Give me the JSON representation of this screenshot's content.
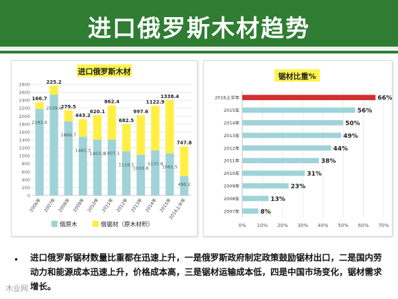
{
  "title": "进口俄罗斯木材趋势",
  "footer": {
    "bullet": "•",
    "text": "进口俄罗斯锯材数量比重都在迅速上升，一是俄罗斯政府制定政策鼓励锯材出口，二是国内劳动力和能源成本迅速上升，价格成本高，三是锯材运输成本低，四是中国市场变化，锯材需求增长。"
  },
  "watermark": "木业网",
  "chart_data": [
    {
      "type": "bar",
      "stacked": true,
      "title": "进口俄罗斯木材",
      "categories": [
        "2006年",
        "2007年",
        "2008年",
        "2009年",
        "2010年",
        "2011年",
        "2012年",
        "2013年",
        "2014年",
        "2015年",
        "2016上半年"
      ],
      "series": [
        {
          "name": "俄原木",
          "color": "#9fd3d8",
          "values": [
            2182.6,
            2539.6,
            1866.7,
            1481.3,
            1403.9,
            1407.1,
            1116.1,
            1026.8,
            1137.9,
            1061.5,
            490.2
          ]
        },
        {
          "name": "俄锯材（原木材积）",
          "color": "#ffef45",
          "values": [
            166.7,
            225.2,
            279.5,
            443.2,
            620.1,
            862.4,
            682.5,
            997.6,
            1122.9,
            1338.4,
            747.8
          ]
        }
      ],
      "yticks": [
        0,
        200,
        400,
        600,
        800,
        1000,
        1200,
        1400,
        1600,
        1800,
        2000,
        2200,
        2400,
        2600,
        2800
      ],
      "ylim": [
        0,
        2800
      ],
      "legend": "bottom"
    },
    {
      "type": "bar",
      "orientation": "horizontal",
      "title": "锯材比重%",
      "categories": [
        "2016上半年",
        "2015年",
        "2014年",
        "2013年",
        "2012年",
        "2011年",
        "2010年",
        "2009年",
        "2008年",
        "2007年"
      ],
      "values": [
        66,
        56,
        50,
        49,
        44,
        38,
        31,
        23,
        13,
        8
      ],
      "labels": [
        "66%",
        "56%",
        "50%",
        "49%",
        "44%",
        "38%",
        "31%",
        "23%",
        "13%",
        "8%"
      ],
      "highlight_color": "#d32f2f",
      "bar_color": "#9fd3d8",
      "xticks": [
        "0%",
        "10%",
        "20%",
        "30%",
        "40%",
        "50%",
        "60%",
        "70%"
      ],
      "xlim": [
        0,
        70
      ]
    }
  ]
}
